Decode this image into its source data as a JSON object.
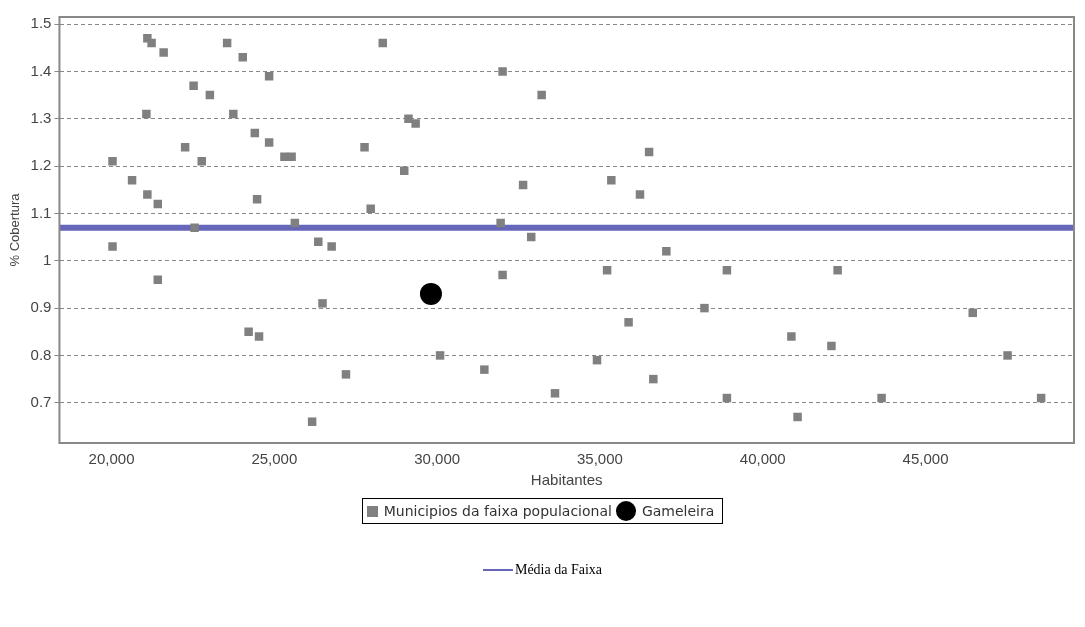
{
  "chart_data": {
    "type": "scatter",
    "xlabel": "Habitantes",
    "ylabel": "% Cobertura",
    "xlim": [
      18400,
      49560
    ],
    "ylim": [
      0.615,
      1.515
    ],
    "xticks": [
      {
        "value": 20000,
        "label": "20,000"
      },
      {
        "value": 25000,
        "label": "25,000"
      },
      {
        "value": 30000,
        "label": "30,000"
      },
      {
        "value": 35000,
        "label": "35,000"
      },
      {
        "value": 40000,
        "label": "40,000"
      },
      {
        "value": 45000,
        "label": "45,000"
      }
    ],
    "yticks": [
      0.7,
      0.8,
      0.9,
      1,
      1.1,
      1.2,
      1.3,
      1.4,
      1.5
    ],
    "grid": "y",
    "legend": "bottom",
    "series": [
      {
        "name": "Municipios da faixa populacional",
        "color": "#808080",
        "marker": "square",
        "x": [
          20030,
          20030,
          20630,
          21070,
          21100,
          21230,
          21100,
          21420,
          21600,
          21420,
          22260,
          22520,
          22550,
          22770,
          23020,
          23550,
          23740,
          24030,
          24210,
          24400,
          24530,
          24470,
          24840,
          24840,
          25310,
          25530,
          25630,
          26350,
          26480,
          26760,
          26160,
          27200,
          27770,
          27960,
          28330,
          28990,
          29120,
          29340,
          30090,
          31450,
          31950,
          32010,
          32010,
          32640,
          32890,
          33210,
          33620,
          34910,
          35220,
          35350,
          35880,
          36230,
          36510,
          36640,
          37040,
          38210,
          38900,
          38900,
          40880,
          41070,
          42110,
          42300,
          43650,
          46450,
          47520,
          48550
        ],
        "values": [
          1.21,
          1.03,
          1.17,
          1.31,
          1.47,
          1.46,
          1.14,
          1.12,
          1.44,
          0.96,
          1.24,
          1.37,
          1.07,
          1.21,
          1.35,
          1.46,
          1.31,
          1.43,
          0.85,
          1.27,
          0.84,
          1.13,
          1.25,
          1.39,
          1.22,
          1.22,
          1.08,
          1.04,
          0.91,
          1.03,
          0.66,
          0.76,
          1.24,
          1.11,
          1.46,
          1.19,
          1.3,
          1.29,
          0.8,
          0.77,
          1.08,
          1.4,
          0.97,
          1.16,
          1.05,
          1.35,
          0.72,
          0.79,
          0.98,
          1.17,
          0.87,
          1.14,
          1.23,
          0.75,
          1.02,
          0.9,
          0.98,
          0.71,
          0.84,
          0.67,
          0.82,
          0.98,
          0.71,
          0.89,
          0.8,
          0.71
        ]
      },
      {
        "name": "Gameleira",
        "color": "#000000",
        "marker": "circle",
        "x": [
          29810
        ],
        "values": [
          0.93
        ]
      }
    ],
    "ref_lines": [
      {
        "axis": "y",
        "value": 1.07,
        "label": "Média da Faixa",
        "color": "#6666bb"
      }
    ]
  }
}
